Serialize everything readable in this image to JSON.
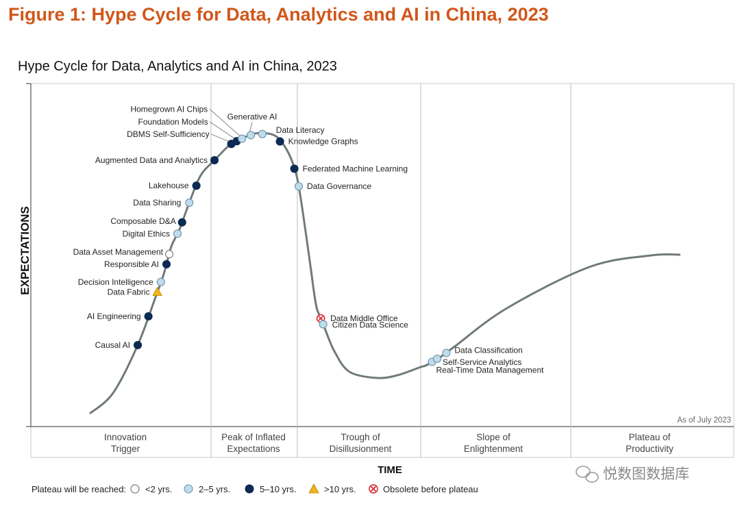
{
  "figure_title": "Figure 1: Hype Cycle for Data, Analytics and AI in China, 2023",
  "watermark": "悦数图数据库",
  "chart_data": {
    "type": "hype_cycle",
    "title": "Hype Cycle for Data, Analytics and AI in China, 2023",
    "xlabel": "TIME",
    "ylabel": "EXPECTATIONS",
    "as_of": "As of July 2023",
    "phases": [
      [
        "Innovation",
        "Trigger"
      ],
      [
        "Peak of Inflated",
        "Expectations"
      ],
      [
        "Trough of",
        "Disillusionment"
      ],
      [
        "Slope of",
        "Enlightenment"
      ],
      [
        "Plateau of",
        "Productivity"
      ]
    ],
    "legend": {
      "prefix": "Plateau will be reached:",
      "categories": [
        {
          "key": "lt2",
          "label": "<2 yrs.",
          "color": "#ffffff"
        },
        {
          "key": "2to5",
          "label": "2–5 yrs.",
          "color": "#bfdcec"
        },
        {
          "key": "5to10",
          "label": "5–10 yrs.",
          "color": "#0d2a52"
        },
        {
          "key": "gt10",
          "label": ">10 yrs.",
          "color": "#f0b41c"
        },
        {
          "key": "obsolete",
          "label": "Obsolete before plateau",
          "color": "#d8202a"
        }
      ]
    },
    "technologies": [
      {
        "name": "Causal AI",
        "t": 0.2,
        "cat": "5to10"
      },
      {
        "name": "AI Engineering",
        "t": 0.26,
        "cat": "5to10"
      },
      {
        "name": "Data Fabric",
        "t": 0.31,
        "cat": "gt10"
      },
      {
        "name": "Decision Intelligence",
        "t": 0.33,
        "cat": "2to5"
      },
      {
        "name": "Responsible AI",
        "t": 0.365,
        "cat": "5to10"
      },
      {
        "name": "Data Asset Management",
        "t": 0.385,
        "cat": "lt2"
      },
      {
        "name": "Digital Ethics",
        "t": 0.475,
        "cat": "2to5"
      },
      {
        "name": "Composable D&A",
        "t": 0.525,
        "cat": "5to10"
      },
      {
        "name": "Data Sharing",
        "t": 0.595,
        "cat": "2to5"
      },
      {
        "name": "Lakehouse",
        "t": 0.66,
        "cat": "5to10"
      },
      {
        "name": "Augmented Data and Analytics",
        "t": 0.8,
        "cat": "5to10"
      },
      {
        "name": "DBMS Self-Sufficiency",
        "t": 0.905,
        "cat": "5to10"
      },
      {
        "name": "Foundation Models",
        "t": 0.93,
        "cat": "5to10"
      },
      {
        "name": "Homegrown AI Chips",
        "t": 0.953,
        "cat": "2to5"
      },
      {
        "name": "Generative AI",
        "t": 0.985,
        "cat": "2to5"
      },
      {
        "name": "Data Literacy",
        "t": 1.02,
        "cat": "2to5"
      },
      {
        "name": "Knowledge Graphs",
        "t": 1.08,
        "cat": "5to10"
      },
      {
        "name": "Federated Machine Learning",
        "t": 1.16,
        "cat": "5to10"
      },
      {
        "name": "Data Governance",
        "t": 1.2,
        "cat": "2to5"
      },
      {
        "name": "Data Middle Office",
        "t": 1.73,
        "cat": "obsolete"
      },
      {
        "name": "Citizen Data Science",
        "t": 1.78,
        "cat": "2to5"
      },
      {
        "name": "Real-Time Data Management",
        "t": 2.63,
        "cat": "2to5"
      },
      {
        "name": "Self-Service Analytics",
        "t": 2.66,
        "cat": "2to5"
      },
      {
        "name": "Data Classification",
        "t": 2.72,
        "cat": "2to5"
      }
    ]
  }
}
